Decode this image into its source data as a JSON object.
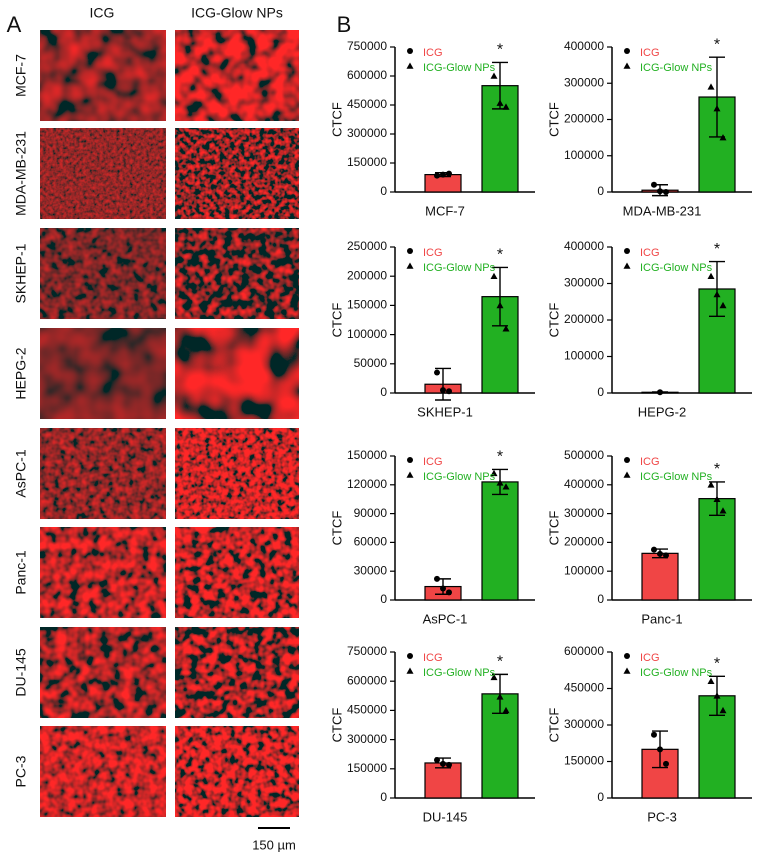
{
  "panel_a": {
    "label": "A",
    "columns": [
      "ICG",
      "ICG-Glow NPs"
    ],
    "rows": [
      "MCF-7",
      "MDA-MB-231",
      "SKHEP-1",
      "HEPG-2",
      "AsPC-1",
      "Panc-1",
      "DU-145",
      "PC-3"
    ],
    "scale_bar": "150 µm"
  },
  "panel_b": {
    "label": "B"
  },
  "chart_data": [
    {
      "type": "bar",
      "xlabel": "MCF-7",
      "ylabel": "CTCF",
      "ylim": [
        0,
        750000
      ],
      "yticks": [
        0,
        150000,
        300000,
        450000,
        600000,
        750000
      ],
      "annotation": "*",
      "series": [
        {
          "name": "ICG",
          "color": "#f04545",
          "values": [
            90000
          ],
          "errors": [
            10000
          ],
          "points": [
            85000,
            90000,
            95000
          ]
        },
        {
          "name": "ICG-Glow NPs",
          "color": "#22b022",
          "values": [
            550000
          ],
          "errors": [
            120000
          ],
          "points": [
            600000,
            460000,
            440000
          ]
        }
      ]
    },
    {
      "type": "bar",
      "xlabel": "MDA-MB-231",
      "ylabel": "CTCF",
      "ylim": [
        0,
        400000
      ],
      "yticks": [
        0,
        100000,
        200000,
        300000,
        400000
      ],
      "annotation": "*",
      "series": [
        {
          "name": "ICG",
          "color": "#f04545",
          "values": [
            5000
          ],
          "errors": [
            15000
          ],
          "points": [
            20000,
            2000,
            0
          ]
        },
        {
          "name": "ICG-Glow NPs",
          "color": "#22b022",
          "values": [
            262000
          ],
          "errors": [
            110000
          ],
          "points": [
            290000,
            230000,
            150000
          ]
        }
      ]
    },
    {
      "type": "bar",
      "xlabel": "SKHEP-1",
      "ylabel": "CTCF",
      "ylim": [
        0,
        250000
      ],
      "yticks": [
        0,
        50000,
        100000,
        150000,
        200000,
        250000
      ],
      "annotation": "*",
      "series": [
        {
          "name": "ICG",
          "color": "#f04545",
          "values": [
            15000
          ],
          "errors": [
            27000
          ],
          "points": [
            35000,
            5000,
            3000
          ]
        },
        {
          "name": "ICG-Glow NPs",
          "color": "#22b022",
          "values": [
            165000
          ],
          "errors": [
            50000
          ],
          "points": [
            200000,
            150000,
            110000
          ]
        }
      ]
    },
    {
      "type": "bar",
      "xlabel": "HEPG-2",
      "ylabel": "CTCF",
      "ylim": [
        0,
        400000
      ],
      "yticks": [
        0,
        100000,
        200000,
        300000,
        400000
      ],
      "annotation": "*",
      "series": [
        {
          "name": "ICG",
          "color": "#f04545",
          "values": [
            2000
          ],
          "errors": [
            1000
          ],
          "points": [
            2000
          ]
        },
        {
          "name": "ICG-Glow NPs",
          "color": "#22b022",
          "values": [
            285000
          ],
          "errors": [
            75000
          ],
          "points": [
            320000,
            270000,
            240000
          ]
        }
      ]
    },
    {
      "type": "bar",
      "xlabel": "AsPC-1",
      "ylabel": "CTCF",
      "ylim": [
        0,
        150000
      ],
      "yticks": [
        0,
        30000,
        60000,
        90000,
        120000,
        150000
      ],
      "annotation": "*",
      "series": [
        {
          "name": "ICG",
          "color": "#f04545",
          "values": [
            14000
          ],
          "errors": [
            8000
          ],
          "points": [
            22000,
            12000,
            8000
          ]
        },
        {
          "name": "ICG-Glow NPs",
          "color": "#22b022",
          "values": [
            123000
          ],
          "errors": [
            13000
          ],
          "points": [
            132000,
            122000,
            118000
          ]
        }
      ]
    },
    {
      "type": "bar",
      "xlabel": "Panc-1",
      "ylabel": "CTCF",
      "ylim": [
        0,
        500000
      ],
      "yticks": [
        0,
        100000,
        200000,
        300000,
        400000,
        500000
      ],
      "annotation": "*",
      "series": [
        {
          "name": "ICG",
          "color": "#f04545",
          "values": [
            162000
          ],
          "errors": [
            15000
          ],
          "points": [
            175000,
            160000,
            155000
          ]
        },
        {
          "name": "ICG-Glow NPs",
          "color": "#22b022",
          "values": [
            352000
          ],
          "errors": [
            58000
          ],
          "points": [
            400000,
            350000,
            310000
          ]
        }
      ]
    },
    {
      "type": "bar",
      "xlabel": "DU-145",
      "ylabel": "CTCF",
      "ylim": [
        0,
        750000
      ],
      "yticks": [
        0,
        150000,
        300000,
        450000,
        600000,
        750000
      ],
      "annotation": "*",
      "series": [
        {
          "name": "ICG",
          "color": "#f04545",
          "values": [
            180000
          ],
          "errors": [
            25000
          ],
          "points": [
            195000,
            175000,
            170000
          ]
        },
        {
          "name": "ICG-Glow NPs",
          "color": "#22b022",
          "values": [
            535000
          ],
          "errors": [
            100000
          ],
          "points": [
            620000,
            520000,
            450000
          ]
        }
      ]
    },
    {
      "type": "bar",
      "xlabel": "PC-3",
      "ylabel": "CTCF",
      "ylim": [
        0,
        600000
      ],
      "yticks": [
        0,
        150000,
        300000,
        450000,
        600000
      ],
      "annotation": "*",
      "series": [
        {
          "name": "ICG",
          "color": "#f04545",
          "values": [
            200000
          ],
          "errors": [
            75000
          ],
          "points": [
            260000,
            200000,
            140000
          ]
        },
        {
          "name": "ICG-Glow NPs",
          "color": "#22b022",
          "values": [
            420000
          ],
          "errors": [
            80000
          ],
          "points": [
            480000,
            420000,
            360000
          ]
        }
      ]
    }
  ]
}
